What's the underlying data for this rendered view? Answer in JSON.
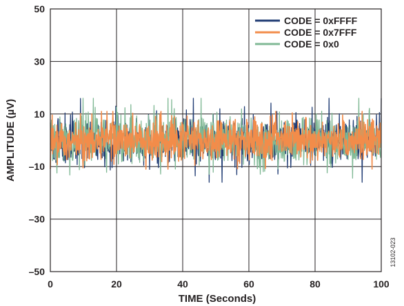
{
  "chart_data": {
    "type": "line",
    "title": "",
    "xlabel": "TIME (Seconds)",
    "ylabel": "AMPLITUDE (µV)",
    "xlim": [
      0,
      100
    ],
    "ylim": [
      -50,
      50
    ],
    "xticks": [
      0,
      20,
      40,
      60,
      80,
      100
    ],
    "yticks": [
      -50,
      -30,
      -10,
      10,
      30,
      50
    ],
    "ytick_labels": [
      "–50",
      "–30",
      "–10",
      "10",
      "30",
      "50"
    ],
    "grid": true,
    "legend_position": "top-right",
    "figure_id": "13102-023",
    "series": [
      {
        "name": "CODE = 0xFFFF",
        "color": "#1f3b73",
        "amplitude_range": [
          -16,
          16
        ],
        "typical_rms": 4.5
      },
      {
        "name": "CODE = 0x0",
        "color": "#7fb894",
        "amplitude_range": [
          -17,
          16
        ],
        "typical_rms": 4.8
      },
      {
        "name": "CODE = 0x7FFF",
        "color": "#f28c4a",
        "amplitude_range": [
          -11,
          11
        ],
        "typical_rms": 4.0
      }
    ],
    "legend_order": [
      0,
      2,
      1
    ]
  }
}
